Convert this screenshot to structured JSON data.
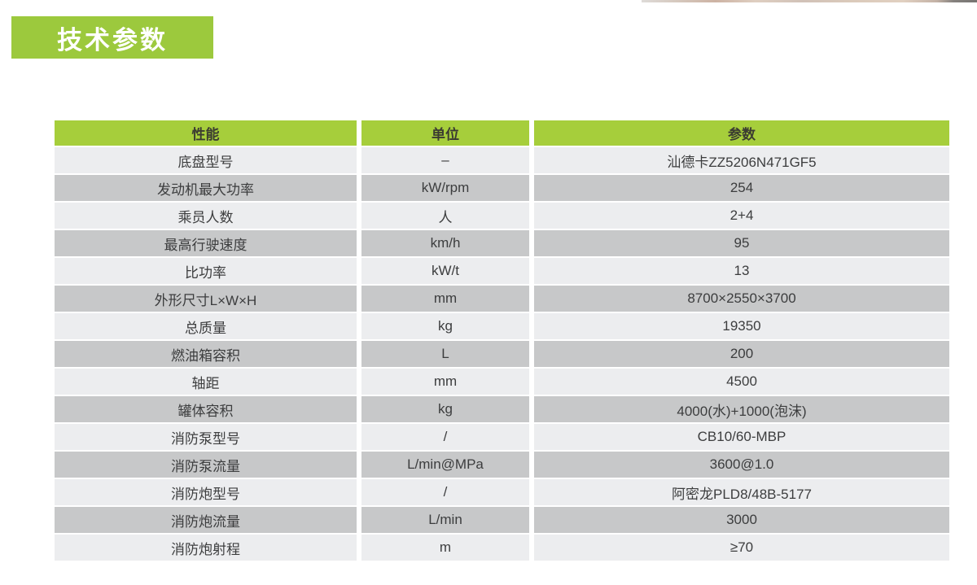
{
  "page": {
    "title_badge": "技术参数"
  },
  "table": {
    "headers": {
      "name": "性能",
      "unit": "单位",
      "value": "参数"
    },
    "rows": [
      {
        "name": "底盘型号",
        "unit": "–",
        "value": "汕德卡ZZ5206N471GF5"
      },
      {
        "name": "发动机最大功率",
        "unit": "kW/rpm",
        "value": "254"
      },
      {
        "name": "乘员人数",
        "unit": "人",
        "value": "2+4"
      },
      {
        "name": "最高行驶速度",
        "unit": "km/h",
        "value": "95"
      },
      {
        "name": "比功率",
        "unit": "kW/t",
        "value": "13"
      },
      {
        "name": "外形尺寸L×W×H",
        "unit": "mm",
        "value": "8700×2550×3700"
      },
      {
        "name": "总质量",
        "unit": "kg",
        "value": "19350"
      },
      {
        "name": "燃油箱容积",
        "unit": "L",
        "value": "200"
      },
      {
        "name": "轴距",
        "unit": "mm",
        "value": "4500"
      },
      {
        "name": "罐体容积",
        "unit": "kg",
        "value": "4000(水)+1000(泡沫)"
      },
      {
        "name": "消防泵型号",
        "unit": "/",
        "value": "CB10/60-MBP"
      },
      {
        "name": "消防泵流量",
        "unit": "L/min@MPa",
        "value": "3600@1.0"
      },
      {
        "name": "消防炮型号",
        "unit": "/",
        "value": "阿密龙PLD8/48B-5177"
      },
      {
        "name": "消防炮流量",
        "unit": "L/min",
        "value": "3000"
      },
      {
        "name": "消防炮射程",
        "unit": "m",
        "value": "≥70"
      }
    ]
  },
  "colors": {
    "badge_green": "#9cc93d",
    "header_green": "#a6ce3b",
    "row_light": "#ecedef",
    "row_dark": "#c7c8c9",
    "text_color": "#3c3d3e"
  }
}
